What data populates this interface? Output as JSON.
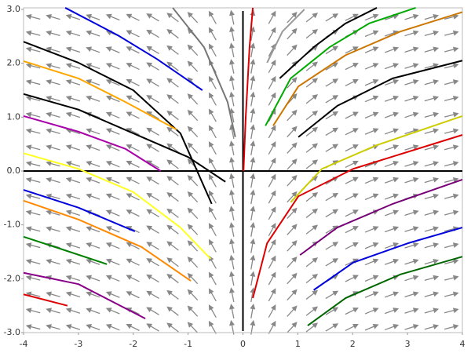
{
  "chart_data": {
    "type": "line",
    "xlim": [
      -4,
      4
    ],
    "ylim": [
      -3,
      3
    ],
    "xticks": [
      -4,
      -3,
      -2,
      -1,
      0,
      1,
      2,
      3,
      4
    ],
    "yticks": [
      {
        "value": -3,
        "label": "-3.0"
      },
      {
        "value": -2,
        "label": "-2.0"
      },
      {
        "value": -1,
        "label": "-1.0"
      },
      {
        "value": 0,
        "label": "0.0"
      },
      {
        "value": 1,
        "label": "1.0"
      },
      {
        "value": 2,
        "label": "2.0"
      },
      {
        "value": 3,
        "label": "3.0"
      }
    ],
    "series": [
      {
        "color": "#0000dd",
        "x": [
          -3.24,
          -2.28,
          -1.57,
          -0.74
        ],
        "values": [
          3.03,
          2.52,
          2.08,
          1.5
        ]
      },
      {
        "color": "#000000",
        "x": [
          -4,
          -3,
          -2,
          -1.14,
          -0.57
        ],
        "values": [
          2.4,
          2.01,
          1.5,
          0.7,
          -0.61
        ]
      },
      {
        "color": "#ffa500",
        "x": [
          -4,
          -3,
          -2.14,
          -1.21
        ],
        "values": [
          2.04,
          1.72,
          1.28,
          0.77
        ]
      },
      {
        "color": "#000000",
        "x": [
          -4,
          -3,
          -2,
          -1,
          -0.32
        ],
        "values": [
          1.43,
          1.14,
          0.7,
          0.26,
          -0.2
        ]
      },
      {
        "color": "#aa00aa",
        "x": [
          -4,
          -3,
          -2.14,
          -1.5
        ],
        "values": [
          1.02,
          0.73,
          0.41,
          0
        ]
      },
      {
        "color": "#ffff22",
        "x": [
          -4,
          -3,
          -2,
          -1.14,
          -0.59
        ],
        "values": [
          0.33,
          0.04,
          -0.39,
          -1.05,
          -1.63
        ]
      },
      {
        "color": "#0000dd",
        "x": [
          -4,
          -3,
          -1.97
        ],
        "values": [
          -0.35,
          -0.68,
          -1.12
        ]
      },
      {
        "color": "#ff8800",
        "x": [
          -4,
          -3,
          -1.85,
          -0.95
        ],
        "values": [
          -0.55,
          -0.9,
          -1.41,
          -2.04
        ]
      },
      {
        "color": "#008000",
        "x": [
          -4,
          -3.28,
          -2.48
        ],
        "values": [
          -1.22,
          -1.46,
          -1.73
        ]
      },
      {
        "color": "#880088",
        "x": [
          -4,
          -3,
          -1.78
        ],
        "values": [
          -1.89,
          -2.1,
          -2.74
        ]
      },
      {
        "color": "#dd0000",
        "x": [
          -4,
          -3.2
        ],
        "values": [
          -2.29,
          -2.5
        ]
      },
      {
        "color": "#777777",
        "x": [
          -1.28,
          -0.71,
          -0.28,
          -0.14
        ],
        "values": [
          3.03,
          2.3,
          1.28,
          0.63
        ]
      },
      {
        "color": "#dd0000",
        "x": [
          0.01,
          0.05,
          0.12,
          0.18
        ],
        "values": [
          0,
          0.99,
          2.3,
          3.03
        ]
      },
      {
        "color": "#999999",
        "x": [
          0.44,
          0.72,
          1.12
        ],
        "values": [
          2.01,
          2.59,
          3.0
        ]
      },
      {
        "color": "#000000",
        "x": [
          0.67,
          1.29,
          1.87,
          2.44
        ],
        "values": [
          1.72,
          2.3,
          2.74,
          3.03
        ]
      },
      {
        "color": "#00aa00",
        "x": [
          0.41,
          0.87,
          1.58,
          2.3,
          3.15
        ],
        "values": [
          0.84,
          1.72,
          2.3,
          2.74,
          3.03
        ]
      },
      {
        "color": "#cc7700",
        "x": [
          0.55,
          1.01,
          1.87,
          2.87,
          4
        ],
        "values": [
          0.84,
          1.57,
          2.15,
          2.59,
          2.95
        ]
      },
      {
        "color": "#000000",
        "x": [
          1.01,
          1.72,
          2.73,
          4
        ],
        "values": [
          0.63,
          1.21,
          1.72,
          2.05
        ]
      },
      {
        "color": "#cccc00",
        "x": [
          0.87,
          1.44,
          2.44,
          4
        ],
        "values": [
          -0.58,
          0.04,
          0.48,
          1.02
        ]
      },
      {
        "color": "#dd0000",
        "x": [
          0.18,
          0.44,
          1.01,
          2.01,
          4
        ],
        "values": [
          -2.36,
          -1.34,
          -0.47,
          0.04,
          0.67
        ]
      },
      {
        "color": "#770077",
        "x": [
          1.04,
          1.72,
          2.73,
          4
        ],
        "values": [
          -1.56,
          -1.05,
          -0.61,
          -0.16
        ]
      },
      {
        "color": "#0000dd",
        "x": [
          1.29,
          2.01,
          3.01,
          4
        ],
        "values": [
          -2.21,
          -1.7,
          -1.34,
          -1.05
        ]
      },
      {
        "color": "#006600",
        "x": [
          1.18,
          1.87,
          2.87,
          4
        ],
        "values": [
          -2.87,
          -2.36,
          -1.92,
          -1.59
        ]
      }
    ]
  }
}
